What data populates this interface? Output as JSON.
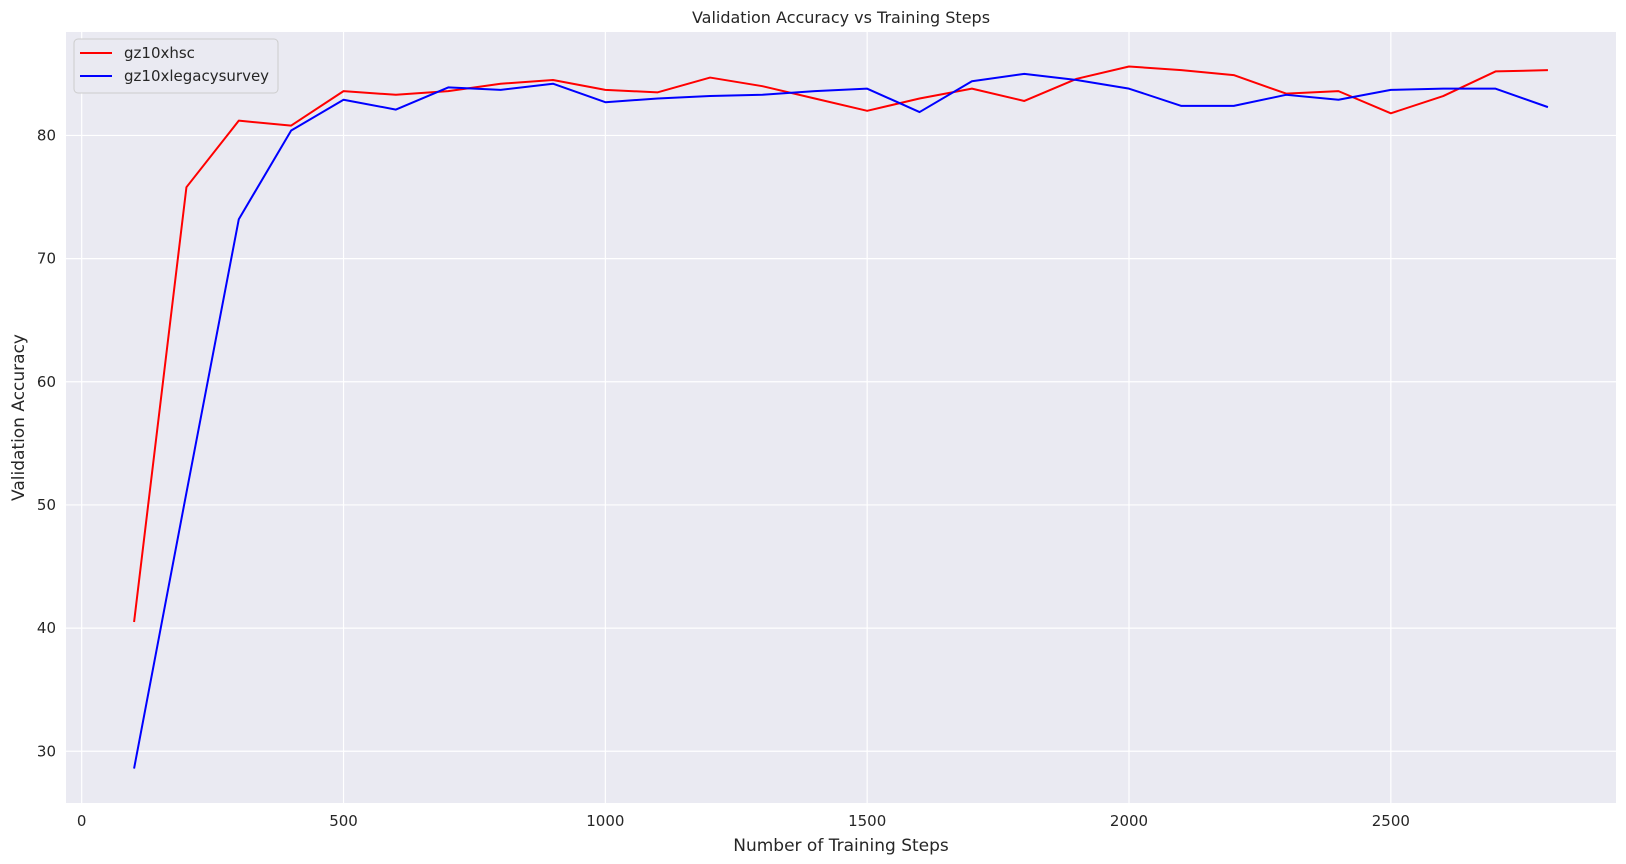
{
  "chart_data": {
    "type": "line",
    "title": "Validation Accuracy vs Training Steps",
    "xlabel": "Number of Training Steps",
    "ylabel": "Validation Accuracy",
    "xlim": [
      -30,
      2930
    ],
    "ylim": [
      25.8,
      88.4
    ],
    "xticks": [
      0,
      500,
      1000,
      1500,
      2000,
      2500
    ],
    "yticks": [
      30,
      40,
      50,
      60,
      70,
      80
    ],
    "grid": true,
    "legend_position": "upper left",
    "x": [
      100,
      200,
      300,
      400,
      500,
      600,
      700,
      800,
      900,
      1000,
      1100,
      1200,
      1300,
      1400,
      1500,
      1600,
      1700,
      1800,
      1900,
      2000,
      2100,
      2200,
      2300,
      2400,
      2500,
      2600,
      2700,
      2800
    ],
    "series": [
      {
        "name": "gz10xhsc",
        "color": "#ff0000",
        "values": [
          40.5,
          75.8,
          81.2,
          80.8,
          83.6,
          83.3,
          83.6,
          84.2,
          84.5,
          83.7,
          83.5,
          84.7,
          84.0,
          83.0,
          82.0,
          83.0,
          83.8,
          82.8,
          84.6,
          85.6,
          85.3,
          84.9,
          83.4,
          83.6,
          81.8,
          83.2,
          85.2,
          85.3
        ]
      },
      {
        "name": "gz10xlegacysurvey",
        "color": "#0000ff",
        "values": [
          28.6,
          51.0,
          73.2,
          80.4,
          82.9,
          82.1,
          83.9,
          83.7,
          84.2,
          82.7,
          83.0,
          83.2,
          83.3,
          83.6,
          83.8,
          81.9,
          84.4,
          85.0,
          84.5,
          83.8,
          82.4,
          82.4,
          83.3,
          82.9,
          83.7,
          83.8,
          83.8,
          82.3
        ]
      }
    ]
  }
}
